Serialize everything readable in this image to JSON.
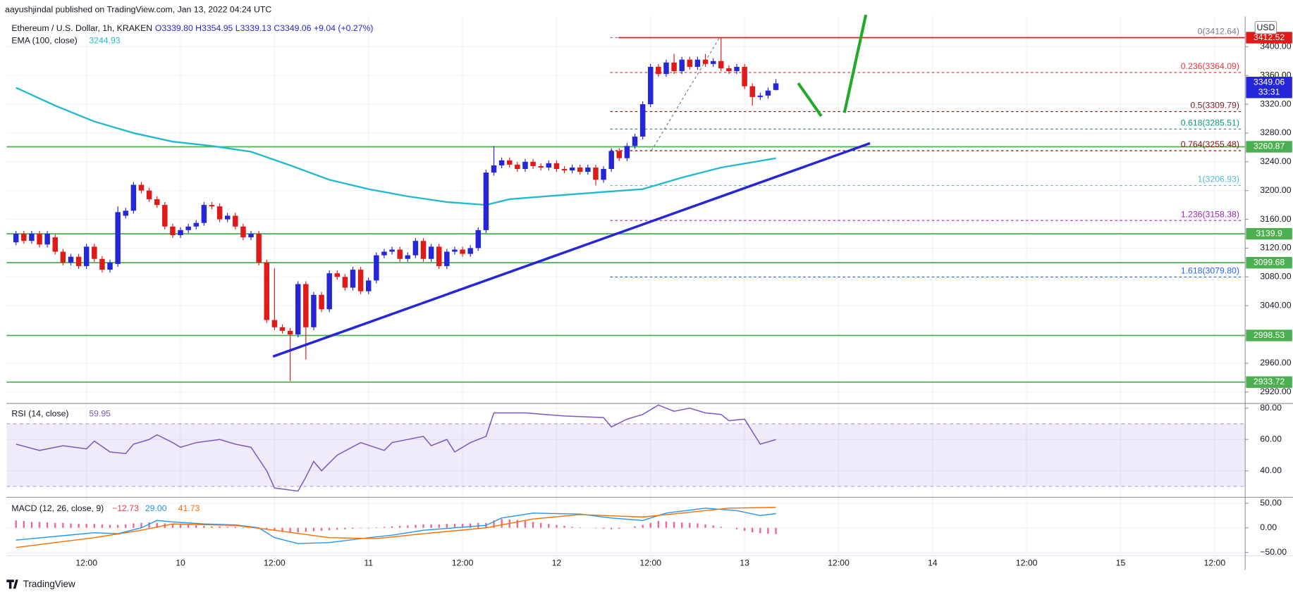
{
  "header": {
    "publisher": "aayushjindal published on TradingView.com, Jan 13, 2022 04:24 UTC"
  },
  "footer": {
    "logo": "TradingView"
  },
  "chart_data": [
    {
      "type": "candlestick",
      "title": "Ethereum / U.S. Dollar, 1h, KRAKEN",
      "ohlc_label": "O3339.80 H3354.95 L3339.13 C3349.06 +9.04 (+0.27%)",
      "currency": "USD",
      "countdown": "33:31",
      "up_color": "#2626d9",
      "down_color": "#e01919",
      "xlim": [
        -1.2,
        156.9
      ],
      "xticks": [
        {
          "value": 9,
          "label": "12:00"
        },
        {
          "value": 21,
          "label": "10"
        },
        {
          "value": 33,
          "label": "12:00"
        },
        {
          "value": 45,
          "label": "11"
        },
        {
          "value": 57,
          "label": "12:00"
        },
        {
          "value": 69,
          "label": "12"
        },
        {
          "value": 81,
          "label": "12:00"
        },
        {
          "value": 93,
          "label": "13"
        },
        {
          "value": 105,
          "label": "12:00"
        },
        {
          "value": 117,
          "label": "14"
        },
        {
          "value": 129,
          "label": "12:00"
        },
        {
          "value": 141,
          "label": "15"
        },
        {
          "value": 153,
          "label": "12:00"
        }
      ],
      "ylim": [
        2904,
        3442
      ],
      "yticks": [
        {
          "value": 3400,
          "label": "3400.00"
        },
        {
          "value": 3360,
          "label": "3360.00"
        },
        {
          "value": 3320,
          "label": "3320.00"
        },
        {
          "value": 3280,
          "label": "3280.00"
        },
        {
          "value": 3240,
          "label": "3240.00"
        },
        {
          "value": 3200,
          "label": "3200.00"
        },
        {
          "value": 3160,
          "label": "3160.00"
        },
        {
          "value": 3120,
          "label": "3120.00"
        },
        {
          "value": 3080,
          "label": "3080.00"
        },
        {
          "value": 3040,
          "label": "3040.00"
        },
        {
          "value": 2960,
          "label": "2960.00"
        },
        {
          "value": 2920,
          "label": "2920.00"
        }
      ],
      "open": [
        3128,
        3140,
        3130,
        3140,
        3125,
        3135,
        3115,
        3100,
        3108,
        3095,
        3122,
        3105,
        3090,
        3098,
        3165,
        3172,
        3208,
        3200,
        3188,
        3180,
        3150,
        3138,
        3145,
        3150,
        3155,
        3180,
        3178,
        3160,
        3165,
        3150,
        3135,
        3140,
        3100,
        3020,
        3010,
        3005,
        3000,
        3070,
        3010,
        3055,
        3035,
        3085,
        3080,
        3065,
        3090,
        3060,
        3075,
        3110,
        3115,
        3118,
        3105,
        3110,
        3130,
        3105,
        3122,
        3095,
        3115,
        3118,
        3112,
        3120,
        3145,
        3225,
        3235,
        3242,
        3236,
        3230,
        3240,
        3234,
        3232,
        3238,
        3230,
        3228,
        3232,
        3226,
        3232,
        3215,
        3230,
        3255,
        3245,
        3262,
        3275,
        3320,
        3372,
        3362,
        3378,
        3366,
        3382,
        3372,
        3382,
        3376,
        3380,
        3370,
        3366,
        3372,
        3345,
        3330,
        3332,
        3339.8
      ],
      "high": [
        3144,
        3144,
        3144,
        3144,
        3144,
        3139,
        3119,
        3112,
        3112,
        3126,
        3126,
        3109,
        3104,
        3178,
        3176,
        3212,
        3212,
        3204,
        3192,
        3184,
        3154,
        3149,
        3154,
        3159,
        3184,
        3184,
        3182,
        3169,
        3169,
        3154,
        3144,
        3144,
        3104,
        3092,
        3014,
        3009,
        3074,
        3074,
        3059,
        3059,
        3089,
        3089,
        3084,
        3094,
        3094,
        3079,
        3114,
        3119,
        3122,
        3122,
        3114,
        3134,
        3134,
        3126,
        3126,
        3119,
        3122,
        3122,
        3124,
        3149,
        3229,
        3262,
        3246,
        3246,
        3240,
        3244,
        3244,
        3238,
        3242,
        3242,
        3234,
        3236,
        3236,
        3236,
        3236,
        3234,
        3259,
        3259,
        3266,
        3279,
        3324,
        3376,
        3376,
        3382,
        3390,
        3386,
        3386,
        3386,
        3390,
        3384,
        3412.64,
        3374,
        3376,
        3376,
        3349,
        3336,
        3343,
        3354.95
      ],
      "low": [
        3124,
        3126,
        3126,
        3121,
        3121,
        3111,
        3096,
        3096,
        3091,
        3091,
        3101,
        3086,
        3086,
        3094,
        3161,
        3168,
        3196,
        3184,
        3176,
        3146,
        3134,
        3134,
        3141,
        3146,
        3151,
        3174,
        3156,
        3156,
        3146,
        3131,
        3131,
        3096,
        3016,
        3006,
        3001,
        2935,
        2996,
        2965,
        3006,
        3031,
        3031,
        3076,
        3061,
        3061,
        3056,
        3056,
        3071,
        3106,
        3111,
        3101,
        3101,
        3106,
        3101,
        3101,
        3091,
        3091,
        3111,
        3108,
        3108,
        3116,
        3141,
        3221,
        3231,
        3232,
        3226,
        3226,
        3230,
        3228,
        3228,
        3226,
        3224,
        3224,
        3222,
        3222,
        3206.93,
        3211,
        3226,
        3241,
        3241,
        3258,
        3271,
        3316,
        3358,
        3358,
        3362,
        3362,
        3368,
        3368,
        3372,
        3372,
        3366,
        3362,
        3362,
        3341,
        3318,
        3326,
        3328,
        3339.13
      ],
      "close": [
        3140,
        3130,
        3140,
        3125,
        3140,
        3115,
        3100,
        3108,
        3095,
        3122,
        3105,
        3090,
        3100,
        3170,
        3172,
        3208,
        3200,
        3188,
        3180,
        3150,
        3138,
        3145,
        3150,
        3155,
        3180,
        3178,
        3160,
        3165,
        3150,
        3135,
        3140,
        3100,
        3020,
        3010,
        3005,
        3000,
        3070,
        3010,
        3055,
        3035,
        3085,
        3080,
        3065,
        3090,
        3060,
        3075,
        3110,
        3115,
        3118,
        3105,
        3110,
        3130,
        3105,
        3122,
        3095,
        3115,
        3118,
        3112,
        3120,
        3145,
        3225,
        3235,
        3242,
        3236,
        3230,
        3240,
        3234,
        3232,
        3238,
        3230,
        3228,
        3232,
        3226,
        3232,
        3215,
        3230,
        3255,
        3245,
        3262,
        3275,
        3320,
        3372,
        3362,
        3378,
        3366,
        3382,
        3372,
        3382,
        3376,
        3380,
        3370,
        3366,
        3372,
        3345,
        3330,
        3332,
        3339,
        3349.06
      ],
      "ema": {
        "name": "EMA (100, close)",
        "color": "#22b8cf",
        "x": [
          0,
          5,
          10,
          15,
          20,
          25,
          30,
          35,
          40,
          45,
          50,
          55,
          60,
          63,
          70,
          80,
          85,
          90,
          97
        ],
        "values": [
          3343,
          3318,
          3296,
          3280,
          3268,
          3262,
          3254,
          3235,
          3215,
          3202,
          3192,
          3184,
          3180,
          3188,
          3194,
          3202,
          3218,
          3232,
          3244.93
        ]
      },
      "levels": [
        3260.87,
        3139.9,
        2998.53,
        3099.68,
        2933.72
      ],
      "level_color": "#4caf50",
      "resistance": {
        "value": 3412.52,
        "color": "#e01919"
      },
      "fib_levels": [
        {
          "value": 3412.64,
          "label": "0(3412.64)",
          "color": "#787b86"
        },
        {
          "value": 3364.09,
          "label": "0.236(3364.09)",
          "color": "#e53935"
        },
        {
          "value": 3309.79,
          "label": "0.5(3309.79)",
          "color": "#7a1f1f"
        },
        {
          "value": 3285.51,
          "label": "0.618(3285.51)",
          "color": "#089981"
        },
        {
          "value": 3255.48,
          "label": "0.764(3255.48)",
          "color": "#8b1010"
        },
        {
          "value": 3206.93,
          "label": "1(3206.93)",
          "color": "#4dbfd9"
        },
        {
          "value": 3158.38,
          "label": "1.236(3158.38)",
          "color": "#9c27b0"
        },
        {
          "value": 3079.8,
          "label": "1.618(3079.80)",
          "color": "#2962ff"
        }
      ]
    },
    {
      "type": "line",
      "title": "RSI (14, close)",
      "color": "#7e57c2",
      "ylim": [
        23,
        83
      ],
      "yticks": [
        {
          "value": 80,
          "label": "80.00"
        },
        {
          "value": 60,
          "label": "60.00"
        },
        {
          "value": 40,
          "label": "40.00"
        }
      ],
      "band": [
        30,
        70
      ],
      "x": [
        0,
        3,
        6,
        9,
        10,
        12,
        14,
        15,
        17,
        18,
        20,
        21,
        23,
        26,
        28,
        30,
        32,
        33,
        36,
        37,
        38,
        39,
        41,
        44,
        47,
        48,
        52,
        53,
        55,
        56,
        58,
        60,
        61,
        65,
        70,
        75,
        76,
        78,
        80,
        82,
        84,
        86,
        88,
        90,
        91,
        93,
        94,
        95,
        97
      ],
      "values": [
        57,
        53,
        56,
        54,
        59,
        52,
        51,
        57,
        60,
        63,
        58,
        55,
        58,
        60,
        57,
        55,
        40,
        29,
        27,
        36,
        46,
        40,
        50,
        58,
        53,
        58,
        62,
        56,
        60,
        52,
        58,
        62,
        77,
        77,
        75,
        74,
        68,
        73,
        76,
        82,
        78,
        80,
        77,
        76,
        72,
        73,
        65,
        57,
        59.95
      ]
    },
    {
      "type": "macd",
      "title": "MACD (12, 26, close, 9)",
      "ylim": [
        -57,
        62
      ],
      "yticks": [
        {
          "value": 50,
          "label": "50.00"
        },
        {
          "value": 0,
          "label": "0.00"
        },
        {
          "value": -50,
          "label": "−50.00"
        }
      ],
      "legend": [
        {
          "value": -12.73,
          "label": "−12.73",
          "color": "#f23645"
        },
        {
          "value": 29.0,
          "label": "29.00",
          "color": "#2196f3"
        },
        {
          "value": 41.73,
          "label": "41.73",
          "color": "#ff6d00"
        }
      ],
      "histogram": {
        "color": "#f06292",
        "values": [
          15,
          14,
          12,
          12,
          11,
          10,
          10,
          9,
          8,
          8,
          8,
          7,
          6,
          6,
          7,
          9,
          10,
          11,
          10,
          9,
          8,
          7,
          6,
          5,
          4,
          3,
          3,
          2,
          2,
          1,
          1,
          0,
          -3,
          -6,
          -8,
          -9,
          -9,
          -8,
          -7,
          -6,
          -5,
          -4,
          -3,
          -2,
          -1,
          -1,
          1,
          2,
          3,
          4,
          5,
          6,
          7,
          7,
          7,
          8,
          8,
          8,
          9,
          10,
          10,
          15,
          18,
          17,
          16,
          14,
          12,
          10,
          8,
          6,
          4,
          2,
          1,
          0,
          -1,
          -2,
          -3,
          -2,
          0,
          3,
          6,
          10,
          14,
          13,
          12,
          11,
          10,
          9,
          7,
          5,
          2,
          0,
          -3,
          -6,
          -9,
          -11,
          -12,
          -12.73
        ]
      },
      "macd": {
        "color": "#2196f3",
        "x": [
          0,
          10,
          13,
          16,
          18,
          20,
          24,
          28,
          31,
          33,
          36,
          40,
          44,
          48,
          52,
          56,
          60,
          62,
          66,
          72,
          76,
          80,
          83,
          88,
          92,
          95,
          97
        ],
        "values": [
          -25,
          -10,
          -12,
          0,
          15,
          12,
          8,
          6,
          0,
          -20,
          -32,
          -30,
          -22,
          -15,
          -5,
          0,
          5,
          20,
          30,
          28,
          20,
          15,
          30,
          40,
          35,
          25,
          29.0
        ]
      },
      "signal": {
        "color": "#ff6d00",
        "x": [
          0,
          10,
          16,
          20,
          28,
          33,
          40,
          46,
          52,
          60,
          66,
          72,
          80,
          85,
          91,
          97
        ],
        "values": [
          -40,
          -20,
          -5,
          8,
          5,
          -5,
          -20,
          -22,
          -12,
          0,
          18,
          27,
          22,
          30,
          40,
          41.73
        ]
      }
    }
  ]
}
